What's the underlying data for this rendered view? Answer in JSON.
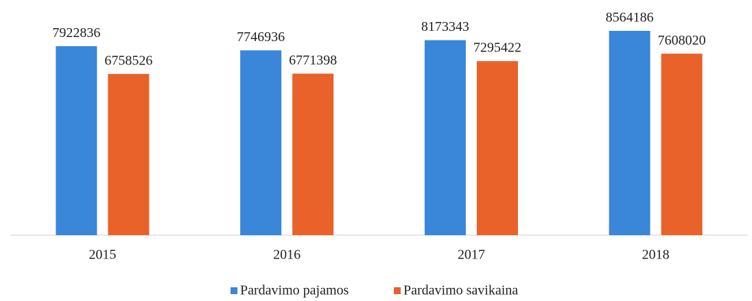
{
  "chart_data": {
    "type": "bar",
    "categories": [
      "2015",
      "2016",
      "2017",
      "2018"
    ],
    "series": [
      {
        "name": "Pardavimo pajamos",
        "color": "#3a86d8",
        "values": [
          7922836,
          7746936,
          8173343,
          8564186
        ]
      },
      {
        "name": "Pardavimo savikaina",
        "color": "#e8622a",
        "values": [
          6758526,
          6771398,
          7295422,
          7608020
        ]
      }
    ]
  }
}
